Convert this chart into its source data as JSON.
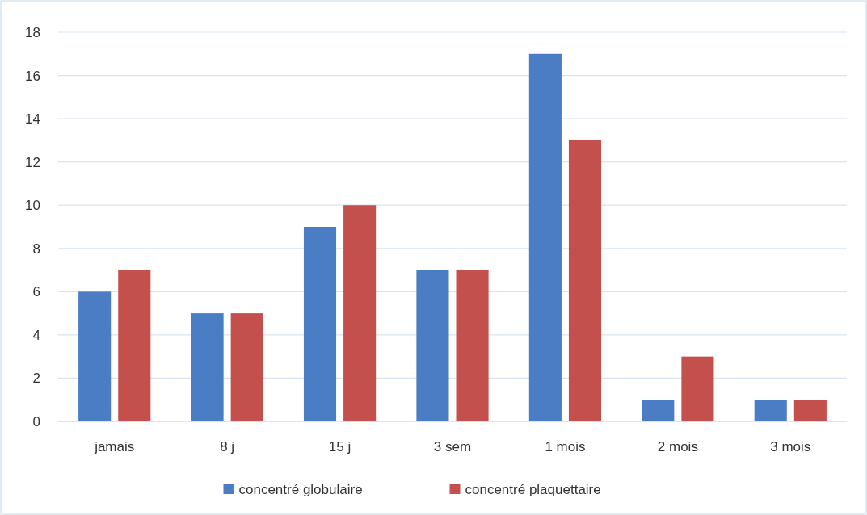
{
  "chart_data": {
    "type": "bar",
    "categories": [
      "jamais",
      "8 j",
      "15 j",
      "3 sem",
      "1 mois",
      "2 mois",
      "3 mois"
    ],
    "series": [
      {
        "name": "concentré globulaire",
        "color": "#4a7dc4",
        "values": [
          6,
          5,
          9,
          7,
          17,
          1,
          1
        ]
      },
      {
        "name": "concentré plaquettaire",
        "color": "#c4504d",
        "values": [
          7,
          5,
          10,
          7,
          13,
          3,
          1
        ]
      }
    ],
    "ylim": [
      0,
      18
    ],
    "yticks": [
      0,
      2,
      4,
      6,
      8,
      10,
      12,
      14,
      16,
      18
    ],
    "grid": "y",
    "legend": "bottom"
  }
}
